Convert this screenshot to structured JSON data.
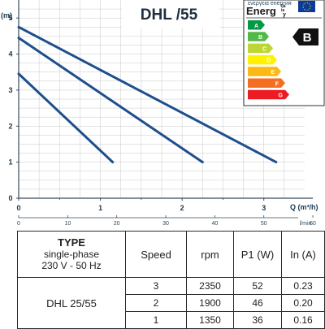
{
  "chart_data": {
    "type": "line",
    "title": "DHL /55",
    "ylabel": "(m)",
    "xlabel": "Q (m³/h)",
    "x2label": "l/min",
    "xlim": [
      0,
      3.5
    ],
    "ylim": [
      0,
      5.5
    ],
    "x_ticks": [
      "0",
      "1",
      "2",
      "3"
    ],
    "x2_ticks": [
      "0",
      "10",
      "20",
      "30",
      "40",
      "50",
      "60"
    ],
    "y_ticks": [
      "0",
      "1",
      "2",
      "3",
      "4",
      "5"
    ],
    "grid": true,
    "series": [
      {
        "x": [
          0,
          1.15
        ],
        "y": [
          3.45,
          1.0
        ]
      },
      {
        "x": [
          0,
          2.25
        ],
        "y": [
          4.45,
          1.0
        ]
      },
      {
        "x": [
          0,
          3.15
        ],
        "y": [
          4.75,
          1.0
        ]
      }
    ]
  },
  "energy_label": {
    "header_small": "ενεργεια енергия",
    "word_large": "Energ",
    "word_small_lines": [
      "ija",
      "ia",
      "y"
    ],
    "grades": [
      "A",
      "B",
      "C",
      "D",
      "E",
      "F",
      "G"
    ],
    "grade_colors": [
      "#009a44",
      "#52b847",
      "#bcd632",
      "#fff200",
      "#fcb814",
      "#f36f21",
      "#ed1c24"
    ],
    "rating": "B"
  },
  "table": {
    "type_title": "TYPE",
    "type_sub1": "single-phase",
    "type_sub2": "230 V - 50 Hz",
    "headers": [
      "Speed",
      "rpm",
      "P1 (W)",
      "In (A)"
    ],
    "model": "DHL 25/55",
    "rows": [
      {
        "speed": "3",
        "rpm": "2350",
        "p1": "52",
        "in": "0.23"
      },
      {
        "speed": "2",
        "rpm": "1900",
        "p1": "46",
        "in": "0.20"
      },
      {
        "speed": "1",
        "rpm": "1350",
        "p1": "36",
        "in": "0.16"
      }
    ]
  }
}
